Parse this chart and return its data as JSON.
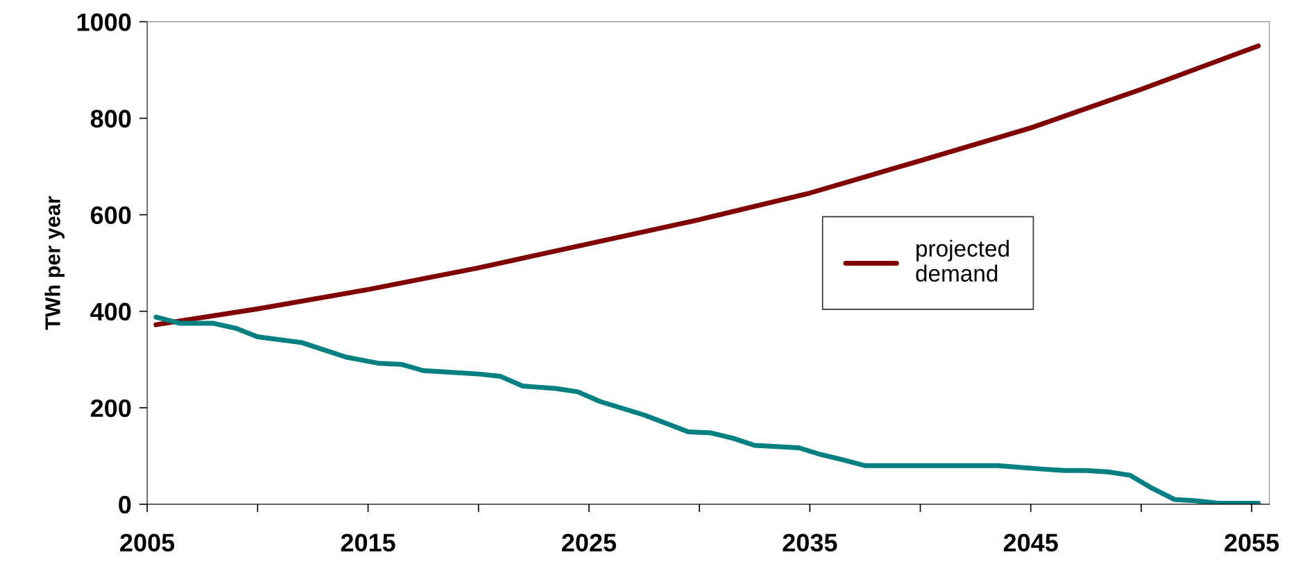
{
  "chart_data": {
    "type": "line",
    "ylabel": "TWh per year",
    "xlim": [
      2005,
      2055.8
    ],
    "ylim": [
      0,
      1000
    ],
    "xticks": [
      2005,
      {
        "value": 2010,
        "label": null
      },
      2015,
      {
        "value": 2020,
        "label": null
      },
      2025,
      {
        "value": 2030,
        "label": null
      },
      2035,
      {
        "value": 2040,
        "label": null
      },
      2045,
      {
        "value": 2050,
        "label": null
      },
      2055
    ],
    "yticks": [
      0,
      200,
      400,
      600,
      800,
      1000
    ],
    "grid": false,
    "legend": "center right",
    "marker": "none",
    "line_style": "solid",
    "series": [
      {
        "name": "projected demand",
        "color": "#800000",
        "x": [
          2005.4,
          2010,
          2015,
          2020,
          2025,
          2030,
          2035,
          2040,
          2045,
          2050,
          2055.3
        ],
        "values": [
          372,
          405,
          445,
          490,
          540,
          590,
          645,
          712,
          780,
          860,
          950
        ]
      },
      {
        "color": "#008080",
        "x": [
          2005.4,
          2006.5,
          2008,
          2009,
          2010,
          2012,
          2014,
          2015.5,
          2016.5,
          2017.5,
          2020,
          2021,
          2022,
          2023.5,
          2024.5,
          2025.5,
          2027.5,
          2029.5,
          2030.5,
          2031.5,
          2032.5,
          2034.5,
          2035.5,
          2036.5,
          2037.5,
          2043.5,
          2045.5,
          2046.5,
          2047.5,
          2048.5,
          2049.5,
          2050.5,
          2051.5,
          2052.5,
          2053.5,
          2055.3
        ],
        "values": [
          388,
          375,
          375,
          365,
          347,
          335,
          305,
          292,
          290,
          277,
          270,
          265,
          245,
          240,
          233,
          213,
          185,
          150,
          148,
          137,
          122,
          117,
          103,
          92,
          80,
          80,
          73,
          70,
          70,
          67,
          60,
          33,
          10,
          7,
          2,
          2
        ]
      }
    ]
  }
}
